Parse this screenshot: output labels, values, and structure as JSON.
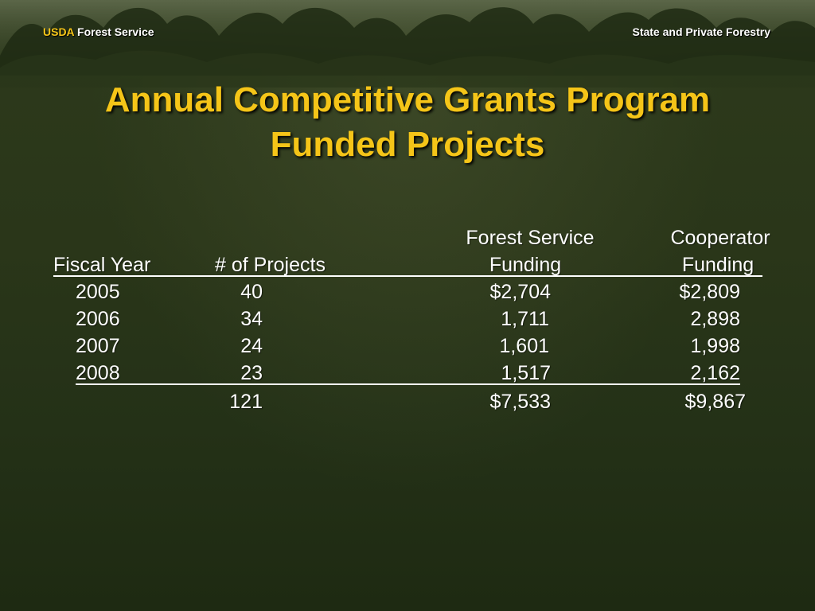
{
  "header": {
    "org_usda": "USDA",
    "org_forest_service": "Forest Service",
    "division": "State and Private Forestry"
  },
  "title": {
    "line1": "Annual Competitive Grants Program",
    "line2": "Funded Projects"
  },
  "table": {
    "headers": {
      "fiscal_year": "Fiscal Year",
      "projects": "# of Projects",
      "fs_line1": "Forest Service",
      "fs_line2": "Funding",
      "coop_line1": "Cooperator",
      "coop_line2": "Funding"
    },
    "rows": [
      {
        "year": "2005",
        "projects": "40",
        "fs": "$2,704",
        "coop": "$2,809"
      },
      {
        "year": "2006",
        "projects": "34",
        "fs": "1,711",
        "coop": "2,898"
      },
      {
        "year": "2007",
        "projects": "24",
        "fs": "1,601",
        "coop": "1,998"
      },
      {
        "year": "2008",
        "projects": "23",
        "fs": "1,517",
        "coop": "2,162"
      }
    ],
    "totals": {
      "projects": "121",
      "fs": "$7,533",
      "coop": "$9,867"
    }
  },
  "colors": {
    "title": "#f5c518",
    "text": "#ffffff",
    "background": "#2a3619"
  }
}
